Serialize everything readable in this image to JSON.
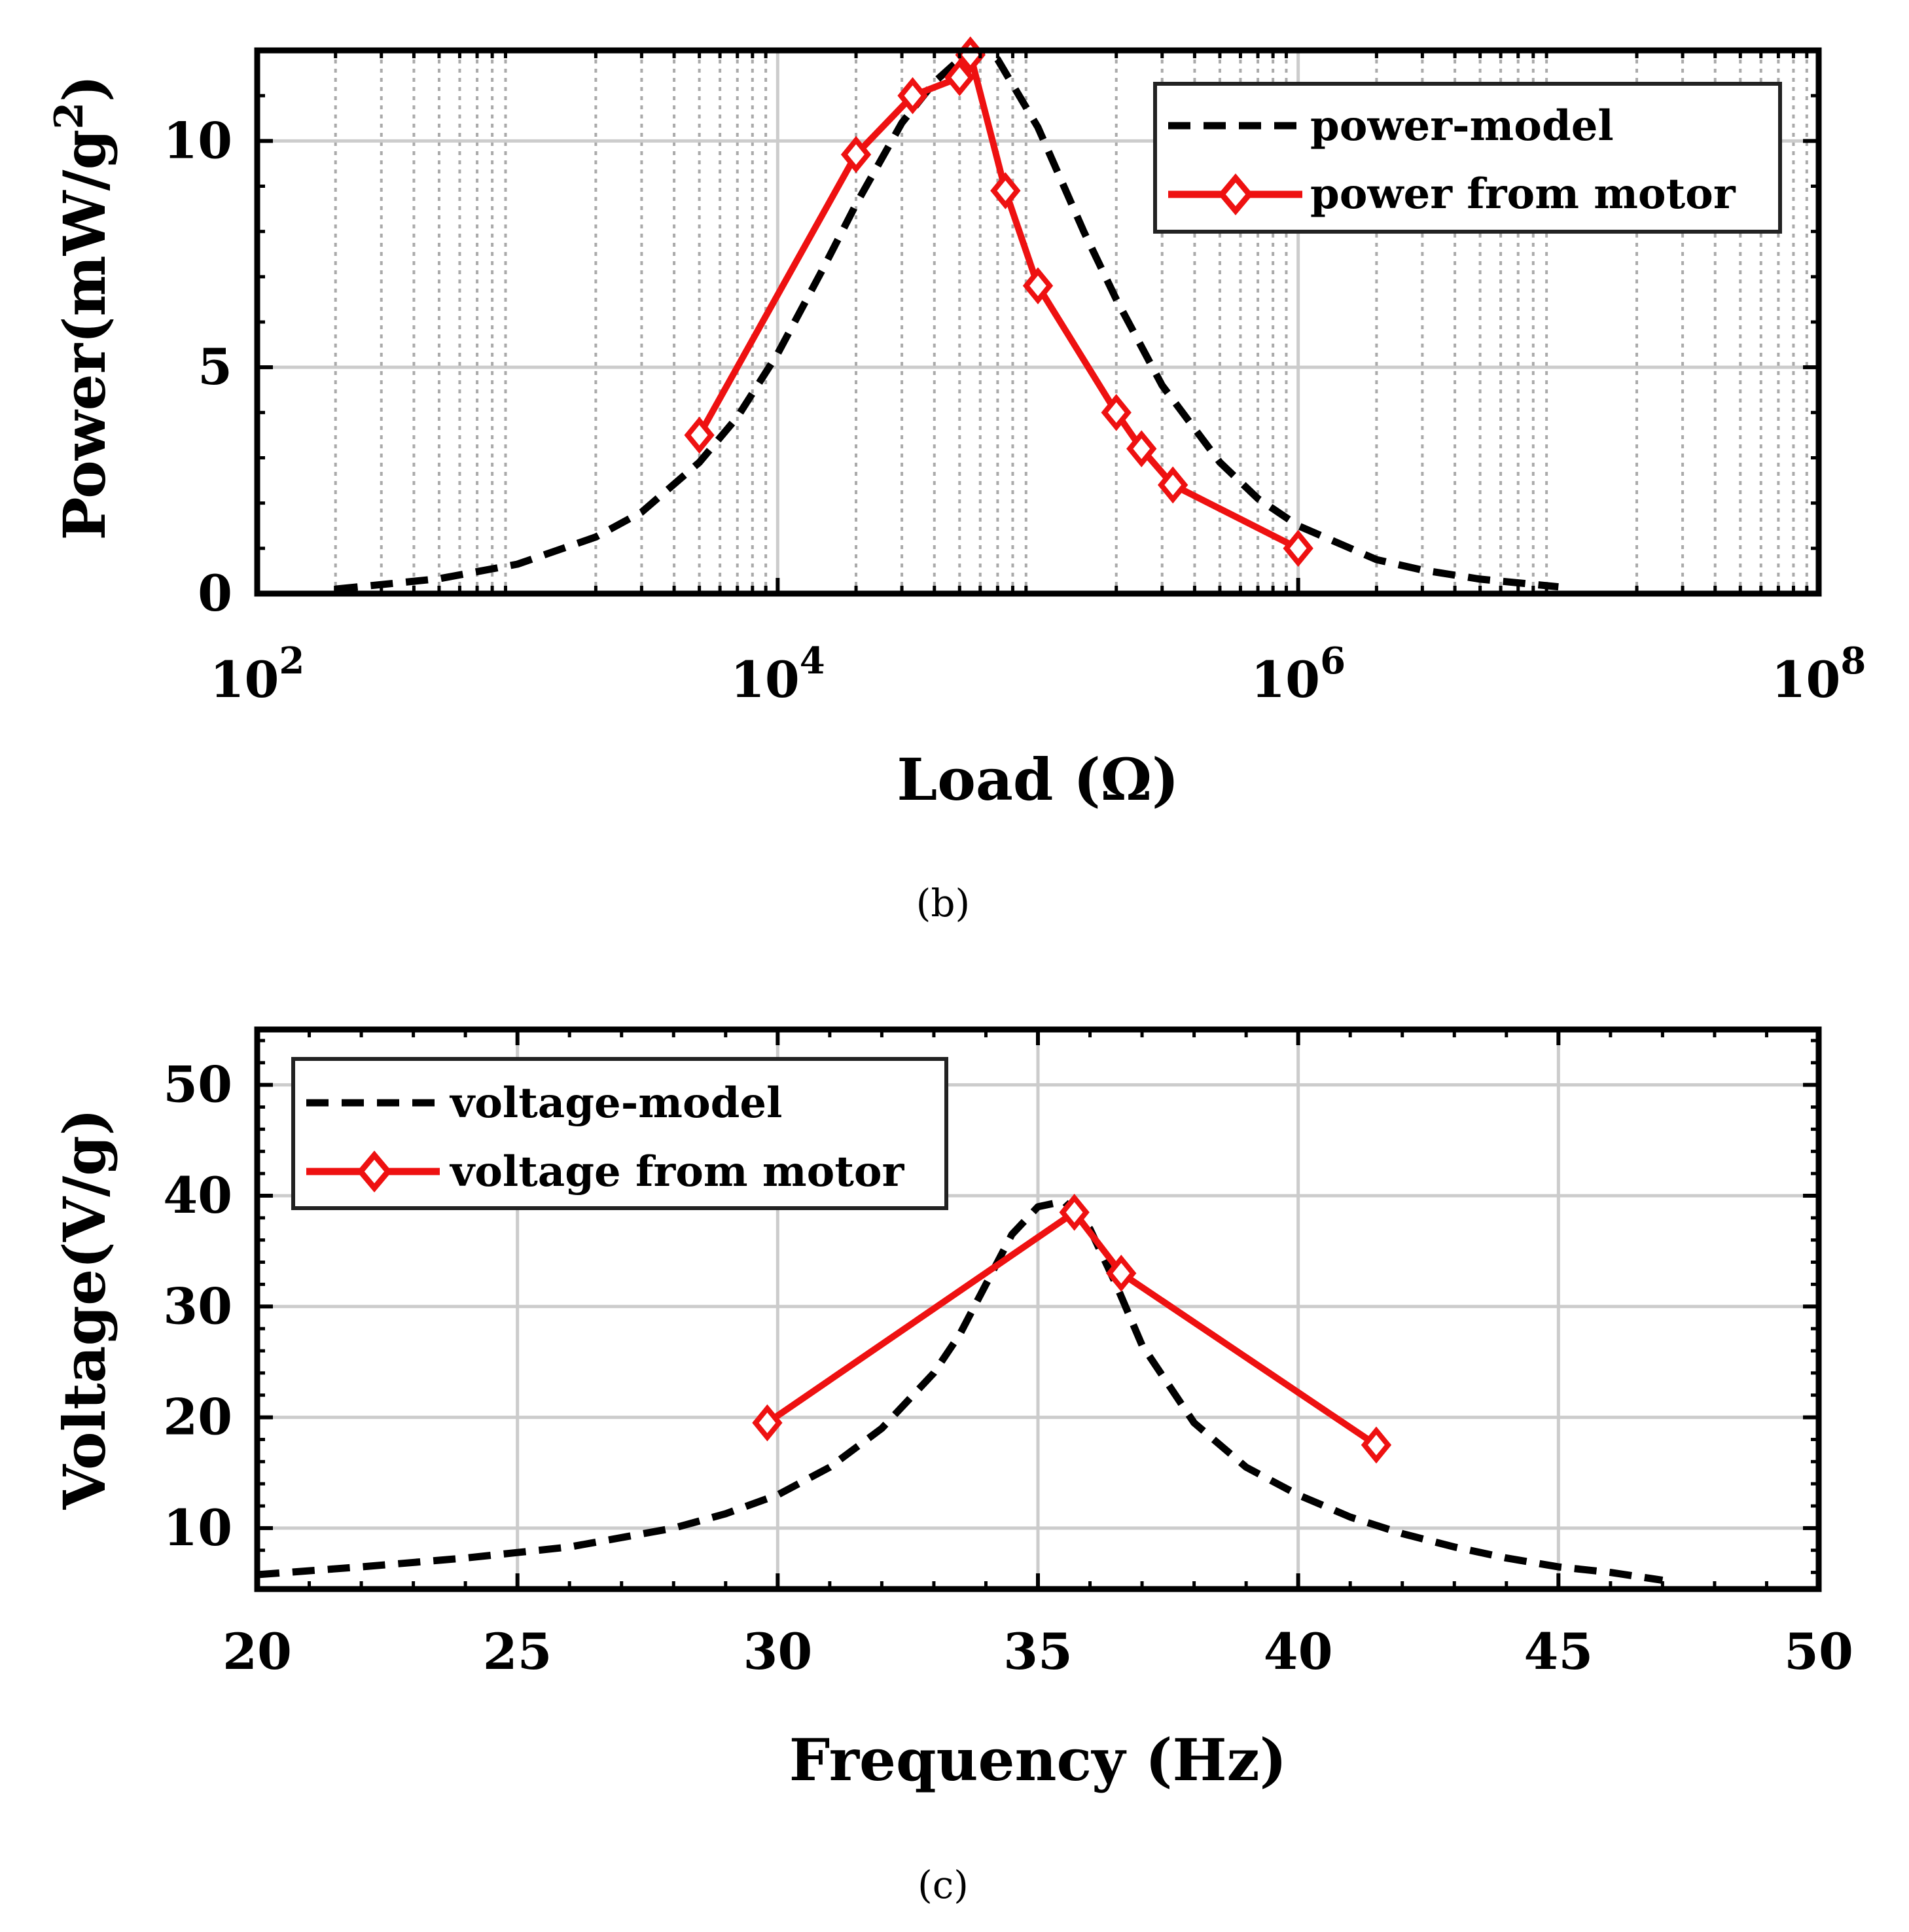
{
  "chart_data": [
    {
      "panel": "(b)",
      "type": "line",
      "xscale": "log",
      "xlim": [
        100,
        100000000
      ],
      "ylim": [
        0,
        12
      ],
      "xticks": [
        100,
        10000,
        1000000,
        100000000
      ],
      "xtick_base": "10",
      "xtick_exponents": [
        "2",
        "4",
        "6",
        "8"
      ],
      "yticks": [
        "0",
        "5",
        "10"
      ],
      "ytick_values": [
        0,
        5,
        10
      ],
      "xlabel": "Load (Ω)",
      "ylabel_main": "Power(mW/g",
      "ylabel_sup": "2",
      "ylabel_close": ")",
      "grid": true,
      "legend_position": "top-right",
      "series": [
        {
          "name": "power-model",
          "style": "dashed",
          "color": "#000000",
          "x": [
            200,
            300,
            500,
            1000,
            2000,
            3000,
            5000,
            7000,
            10000,
            15000,
            20000,
            30000,
            40000,
            50000,
            60000,
            70000,
            100000,
            150000,
            200000,
            300000,
            500000,
            700000,
            1000000,
            2000000,
            3000000,
            5000000,
            10000000
          ],
          "y": [
            0.1,
            0.2,
            0.33,
            0.65,
            1.25,
            1.8,
            2.9,
            3.9,
            5.3,
            7.2,
            8.6,
            10.4,
            11.3,
            11.8,
            12.0,
            11.8,
            10.3,
            8.0,
            6.5,
            4.6,
            2.9,
            2.1,
            1.5,
            0.75,
            0.52,
            0.32,
            0.15
          ]
        },
        {
          "name": "power from motor",
          "style": "solid-diamond",
          "color": "#ee1111",
          "x": [
            5000,
            20000,
            33000,
            50000,
            55000,
            75000,
            100000,
            200000,
            250000,
            330000,
            1000000
          ],
          "y": [
            3.5,
            9.7,
            11.0,
            11.4,
            11.9,
            8.9,
            6.8,
            4.0,
            3.2,
            2.4,
            1.0
          ]
        }
      ]
    },
    {
      "panel": "(c)",
      "type": "line",
      "xlim": [
        20,
        50
      ],
      "ylim": [
        4.5,
        55
      ],
      "xticks": [
        "20",
        "25",
        "30",
        "35",
        "40",
        "45",
        "50"
      ],
      "xtick_values": [
        20,
        25,
        30,
        35,
        40,
        45,
        50
      ],
      "yticks": [
        "10",
        "20",
        "30",
        "40",
        "50"
      ],
      "ytick_values": [
        10,
        20,
        30,
        40,
        50
      ],
      "xlabel": "Frequency (Hz)",
      "ylabel": "Voltage(V/g)",
      "grid": true,
      "legend_position": "top-left",
      "series": [
        {
          "name": "voltage-model",
          "style": "dashed",
          "color": "#000000",
          "x": [
            20,
            22,
            24,
            26,
            28,
            29,
            30,
            31,
            32,
            33,
            33.5,
            34,
            34.5,
            35,
            35.5,
            36,
            36.5,
            37,
            38,
            39,
            40,
            41,
            42,
            43,
            44,
            45,
            46,
            47
          ],
          "y": [
            5.8,
            6.5,
            7.3,
            8.3,
            10.0,
            11.3,
            13.0,
            15.5,
            19.0,
            24.0,
            27.5,
            32.0,
            36.5,
            39.0,
            39.5,
            37.0,
            32.0,
            26.5,
            19.5,
            15.5,
            13.0,
            11.0,
            9.5,
            8.3,
            7.3,
            6.5,
            6.0,
            5.3
          ]
        },
        {
          "name": "voltage from motor",
          "style": "solid-diamond",
          "color": "#ee1111",
          "x": [
            29.8,
            35.7,
            36.6,
            41.5
          ],
          "y": [
            19.5,
            38.5,
            33.0,
            17.5
          ]
        }
      ]
    }
  ],
  "captions": {
    "b": "(b)",
    "c": "(c)"
  }
}
